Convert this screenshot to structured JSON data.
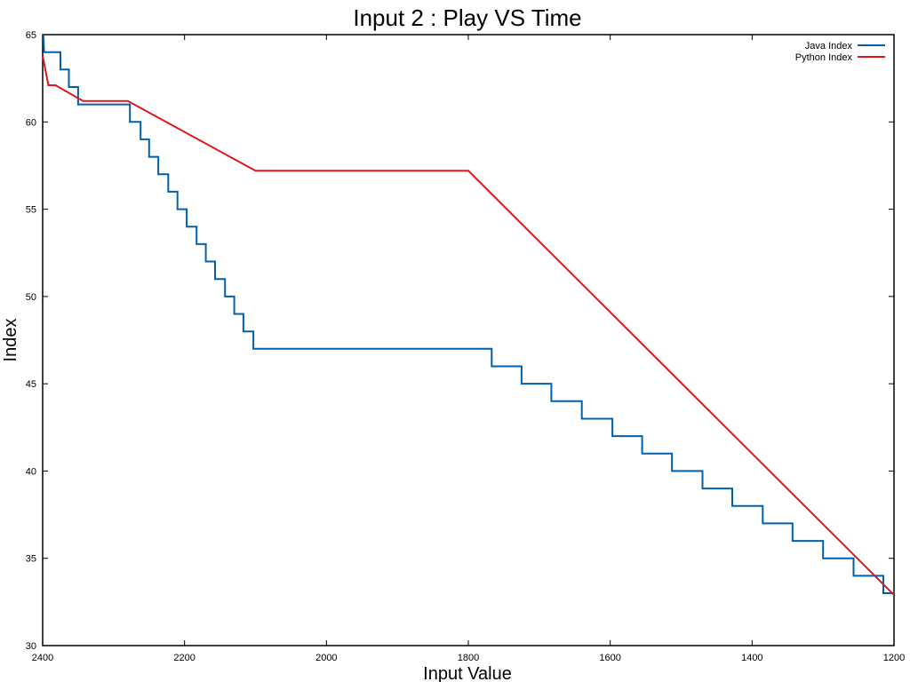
{
  "chart_data": {
    "type": "line",
    "title": "Input 2 : Play VS Time",
    "xlabel": "Input Value",
    "ylabel": "Index",
    "xlim": [
      2400,
      1200
    ],
    "ylim": [
      30,
      65
    ],
    "x_ticks": [
      2400,
      2200,
      2000,
      1800,
      1600,
      1400,
      1200
    ],
    "y_ticks": [
      30,
      35,
      40,
      45,
      50,
      55,
      60,
      65
    ],
    "grid": false,
    "legend_position": "top-right",
    "series": [
      {
        "name": "Java Index",
        "color": "#0060ad",
        "style": "step",
        "points": [
          [
            2399,
            65
          ],
          [
            2398,
            64
          ],
          [
            2375,
            64
          ],
          [
            2375,
            63
          ],
          [
            2363,
            63
          ],
          [
            2363,
            62
          ],
          [
            2350,
            62
          ],
          [
            2350,
            61
          ],
          [
            2277,
            61
          ],
          [
            2277,
            60
          ],
          [
            2262,
            60
          ],
          [
            2262,
            59
          ],
          [
            2250,
            59
          ],
          [
            2250,
            58
          ],
          [
            2237,
            58
          ],
          [
            2237,
            57
          ],
          [
            2223,
            57
          ],
          [
            2223,
            56
          ],
          [
            2210,
            56
          ],
          [
            2210,
            55
          ],
          [
            2197,
            55
          ],
          [
            2197,
            54
          ],
          [
            2183,
            54
          ],
          [
            2183,
            53
          ],
          [
            2170,
            53
          ],
          [
            2170,
            52
          ],
          [
            2157,
            52
          ],
          [
            2157,
            51
          ],
          [
            2143,
            51
          ],
          [
            2143,
            50
          ],
          [
            2130,
            50
          ],
          [
            2130,
            49
          ],
          [
            2117,
            49
          ],
          [
            2117,
            48
          ],
          [
            2103,
            48
          ],
          [
            2103,
            47
          ],
          [
            1767,
            47
          ],
          [
            1767,
            46
          ],
          [
            1725,
            46
          ],
          [
            1725,
            45
          ],
          [
            1683,
            45
          ],
          [
            1683,
            44
          ],
          [
            1640,
            44
          ],
          [
            1640,
            43
          ],
          [
            1597,
            43
          ],
          [
            1597,
            42
          ],
          [
            1555,
            42
          ],
          [
            1555,
            41
          ],
          [
            1513,
            41
          ],
          [
            1513,
            40
          ],
          [
            1470,
            40
          ],
          [
            1470,
            39
          ],
          [
            1428,
            39
          ],
          [
            1428,
            38
          ],
          [
            1385,
            38
          ],
          [
            1385,
            37
          ],
          [
            1343,
            37
          ],
          [
            1343,
            36
          ],
          [
            1300,
            36
          ],
          [
            1300,
            35
          ],
          [
            1257,
            35
          ],
          [
            1257,
            34
          ],
          [
            1215,
            34
          ],
          [
            1215,
            33
          ],
          [
            1200,
            33
          ]
        ]
      },
      {
        "name": "Python Index",
        "color": "#dd181f",
        "style": "line",
        "points": [
          [
            2400,
            63.8
          ],
          [
            2392,
            62.1
          ],
          [
            2382,
            62.1
          ],
          [
            2343,
            61.2
          ],
          [
            2280,
            61.2
          ],
          [
            2100,
            57.2
          ],
          [
            1800,
            57.2
          ],
          [
            1200,
            32.9
          ]
        ]
      }
    ]
  }
}
